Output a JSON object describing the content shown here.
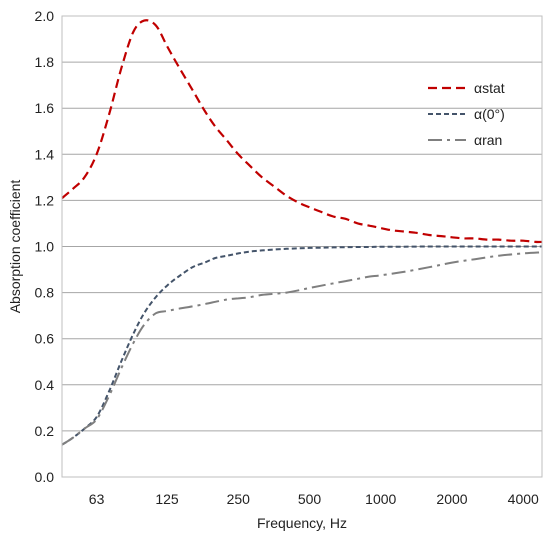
{
  "chart_data": {
    "type": "line",
    "title": "",
    "xlabel": "Frequency, Hz",
    "ylabel": "Absorption coefficient",
    "x_scale": "log2",
    "xlim": [
      45,
      4800
    ],
    "ylim": [
      0,
      2.0
    ],
    "x_ticks": [
      63,
      125,
      250,
      500,
      1000,
      2000,
      4000
    ],
    "x_tick_labels": [
      "63",
      "125",
      "250",
      "500",
      "1000",
      "2000",
      "4000"
    ],
    "y_ticks": [
      0,
      0.2,
      0.4,
      0.6,
      0.8,
      1.0,
      1.2,
      1.4,
      1.6,
      1.8,
      2.0
    ],
    "y_tick_labels": [
      "0.0",
      "0.2",
      "0.4",
      "0.6",
      "0.8",
      "1.0",
      "1.2",
      "1.4",
      "1.6",
      "1.8",
      "2.0"
    ],
    "grid": "horizontal",
    "legend_position": "top-right",
    "series": [
      {
        "name": "αstat",
        "color": "#c00000",
        "dash": "dashed",
        "x": [
          45,
          50,
          56,
          63,
          71,
          80,
          90,
          100,
          112,
          125,
          140,
          160,
          180,
          200,
          224,
          250,
          280,
          315,
          355,
          400,
          450,
          500,
          560,
          630,
          710,
          800,
          900,
          1000,
          1120,
          1250,
          1400,
          1600,
          1800,
          2000,
          2240,
          2500,
          2800,
          3150,
          3550,
          4000,
          4500,
          4800
        ],
        "y": [
          1.21,
          1.25,
          1.3,
          1.4,
          1.57,
          1.77,
          1.93,
          1.98,
          1.96,
          1.87,
          1.78,
          1.68,
          1.59,
          1.52,
          1.46,
          1.4,
          1.35,
          1.3,
          1.26,
          1.22,
          1.19,
          1.17,
          1.15,
          1.13,
          1.12,
          1.1,
          1.09,
          1.08,
          1.07,
          1.065,
          1.06,
          1.05,
          1.045,
          1.04,
          1.035,
          1.035,
          1.03,
          1.03,
          1.025,
          1.025,
          1.02,
          1.02
        ]
      },
      {
        "name": "α(0°)",
        "color": "#44546a",
        "dash": "dotted",
        "x": [
          45,
          50,
          56,
          63,
          71,
          80,
          90,
          100,
          112,
          125,
          140,
          160,
          180,
          200,
          224,
          250,
          280,
          315,
          355,
          400,
          450,
          500,
          560,
          630,
          710,
          800,
          900,
          1000,
          1250,
          1600,
          2000,
          2500,
          3150,
          4000,
          4800
        ],
        "y": [
          0.14,
          0.17,
          0.21,
          0.26,
          0.37,
          0.5,
          0.62,
          0.71,
          0.78,
          0.83,
          0.87,
          0.91,
          0.93,
          0.95,
          0.96,
          0.97,
          0.978,
          0.983,
          0.987,
          0.99,
          0.992,
          0.994,
          0.995,
          0.996,
          0.997,
          0.998,
          0.998,
          0.999,
          0.999,
          1.0,
          1.0,
          1.0,
          1.0,
          1.0,
          1.0
        ]
      },
      {
        "name": "αran",
        "color": "#7f7f7f",
        "dash": "dashdot",
        "x": [
          45,
          50,
          56,
          63,
          71,
          80,
          90,
          100,
          112,
          125,
          140,
          160,
          180,
          200,
          224,
          250,
          280,
          315,
          355,
          400,
          450,
          500,
          560,
          630,
          710,
          800,
          900,
          1000,
          1250,
          1600,
          2000,
          2500,
          3150,
          4000,
          4800
        ],
        "y": [
          0.14,
          0.17,
          0.21,
          0.25,
          0.35,
          0.47,
          0.58,
          0.66,
          0.71,
          0.72,
          0.73,
          0.74,
          0.75,
          0.76,
          0.77,
          0.775,
          0.78,
          0.79,
          0.795,
          0.8,
          0.81,
          0.82,
          0.83,
          0.84,
          0.85,
          0.86,
          0.87,
          0.875,
          0.89,
          0.91,
          0.93,
          0.945,
          0.96,
          0.97,
          0.975
        ]
      }
    ]
  }
}
